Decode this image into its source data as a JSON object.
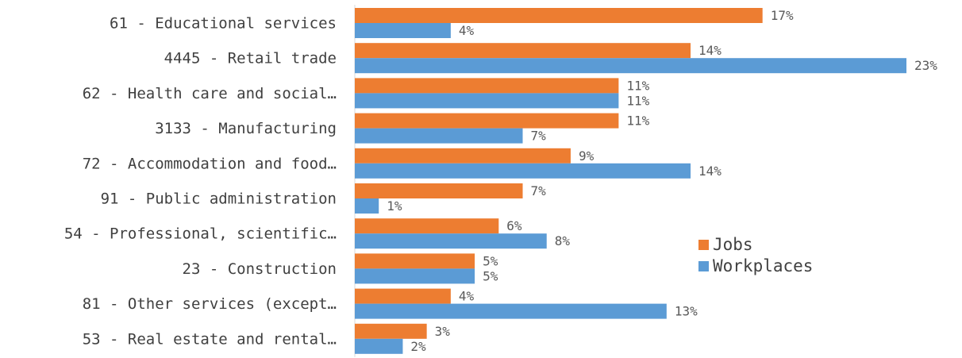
{
  "chart_data": {
    "type": "bar",
    "orientation": "horizontal",
    "categories": [
      "61 - Educational services",
      "4445 - Retail trade",
      "62 - Health care and social…",
      "3133 - Manufacturing",
      "72 - Accommodation and food…",
      "91 - Public administration",
      "54 - Professional, scientific…",
      "23 - Construction",
      "81 - Other services (except…",
      "53 - Real estate and rental…"
    ],
    "series": [
      {
        "name": "Jobs",
        "color": "#ED7D31",
        "values": [
          17,
          14,
          11,
          11,
          9,
          7,
          6,
          5,
          4,
          3
        ]
      },
      {
        "name": "Workplaces",
        "color": "#5B9BD5",
        "values": [
          4,
          23,
          11,
          7,
          14,
          1,
          8,
          5,
          13,
          2
        ]
      }
    ],
    "value_suffix": "%",
    "xlim": [
      0,
      23
    ],
    "legend_position": "right",
    "grid": false
  }
}
